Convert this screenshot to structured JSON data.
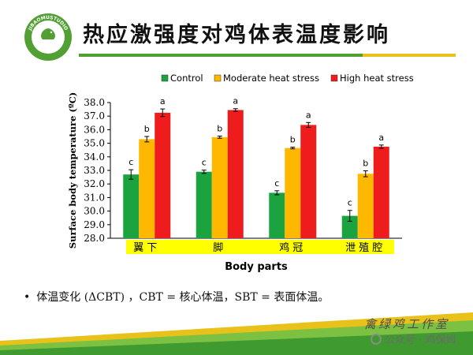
{
  "page": {
    "title": "热应激强度对鸡体表温度影响",
    "logo": {
      "top_text": "JIBAOMUSTUDIO",
      "bottom_text": "鸡宝保"
    },
    "note": "体温变化 (ΔCBT) ，CBT = 核心体温，SBT = 表面体温。",
    "signature": "禽绿鸡工作室",
    "watermark": "公众号 · 鸡保姆"
  },
  "colors": {
    "control": "#1aa33f",
    "moderate": "#ffb800",
    "high": "#ee1c1c",
    "category_highlight": "#ffff00",
    "brand_green": "#52a033",
    "brand_yellow": "#e8c21a"
  },
  "chart_data": {
    "type": "bar",
    "categories": [
      "翼下",
      "脚",
      "鸡冠",
      "泄殖腔"
    ],
    "series": [
      {
        "name": "Control",
        "values": [
          32.7,
          32.9,
          31.35,
          29.65
        ],
        "errors": [
          0.35,
          0.12,
          0.15,
          0.4
        ],
        "letters": [
          "c",
          "c",
          "c",
          "c"
        ]
      },
      {
        "name": "Moderate heat stress",
        "values": [
          35.3,
          35.45,
          34.65,
          32.75
        ],
        "errors": [
          0.2,
          0.08,
          0.06,
          0.22
        ],
        "letters": [
          "b",
          "b",
          "b",
          "b"
        ]
      },
      {
        "name": "High heat stress",
        "values": [
          37.25,
          37.45,
          36.35,
          34.75
        ],
        "errors": [
          0.28,
          0.1,
          0.18,
          0.12
        ],
        "letters": [
          "a",
          "a",
          "a",
          "a"
        ]
      }
    ],
    "xlabel": "Body parts",
    "ylabel": "Surface body temperature (ºC)",
    "ylim": [
      28.0,
      38.0
    ],
    "yticks": [
      "28.0",
      "29.0",
      "30.0",
      "31.0",
      "32.0",
      "33.0",
      "34.0",
      "35.0",
      "36.0",
      "37.0",
      "38.0"
    ],
    "grid": false,
    "legend": "top"
  }
}
